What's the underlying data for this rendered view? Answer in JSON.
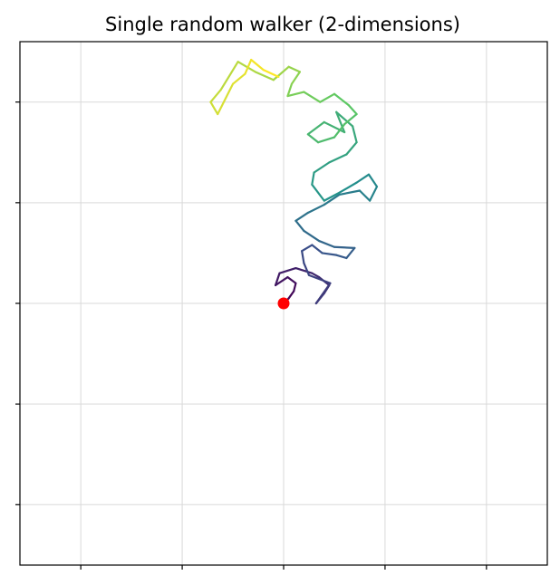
{
  "chart_data": {
    "type": "line",
    "title": "Single random walker (2-dimensions)",
    "xlabel": "",
    "ylabel": "",
    "xlim": [
      -260,
      260
    ],
    "ylim": [
      -260,
      260
    ],
    "xticks": [
      -200,
      -100,
      0,
      100,
      200
    ],
    "yticks": [
      -200,
      -100,
      0,
      100,
      200
    ],
    "tick_labels_visible": false,
    "grid": true,
    "colormap": [
      "#440154",
      "#3b528b",
      "#21918c",
      "#5ec962",
      "#fde725"
    ],
    "series": [
      {
        "x": [
          0,
          5,
          10,
          12,
          4,
          -8,
          -4,
          12,
          28,
          35,
          45,
          40,
          32,
          46,
          25,
          20,
          18,
          28,
          38,
          52,
          62,
          70,
          50,
          35,
          20,
          12,
          24,
          40,
          55,
          75,
          85,
          92,
          84,
          72,
          55,
          40,
          28,
          30,
          45,
          62,
          72,
          68,
          52,
          60,
          40,
          24,
          34,
          50,
          60,
          72,
          64,
          50,
          36,
          20,
          4,
          8,
          16,
          5,
          -10,
          -28,
          -45,
          -62,
          -72,
          -65,
          -50,
          -38,
          -32,
          -20,
          -5
        ],
        "y": [
          0,
          5,
          12,
          20,
          26,
          18,
          30,
          35,
          30,
          26,
          18,
          10,
          0,
          20,
          28,
          40,
          52,
          58,
          50,
          48,
          45,
          55,
          56,
          62,
          72,
          82,
          90,
          98,
          108,
          112,
          102,
          116,
          128,
          120,
          110,
          102,
          118,
          130,
          140,
          148,
          160,
          176,
          190,
          170,
          180,
          168,
          160,
          165,
          178,
          188,
          197,
          208,
          200,
          210,
          206,
          218,
          230,
          235,
          222,
          230,
          240,
          212,
          200,
          188,
          218,
          228,
          242,
          232,
          225
        ],
        "start": [
          0,
          0
        ]
      }
    ],
    "start_marker_color": "#ff0000"
  }
}
